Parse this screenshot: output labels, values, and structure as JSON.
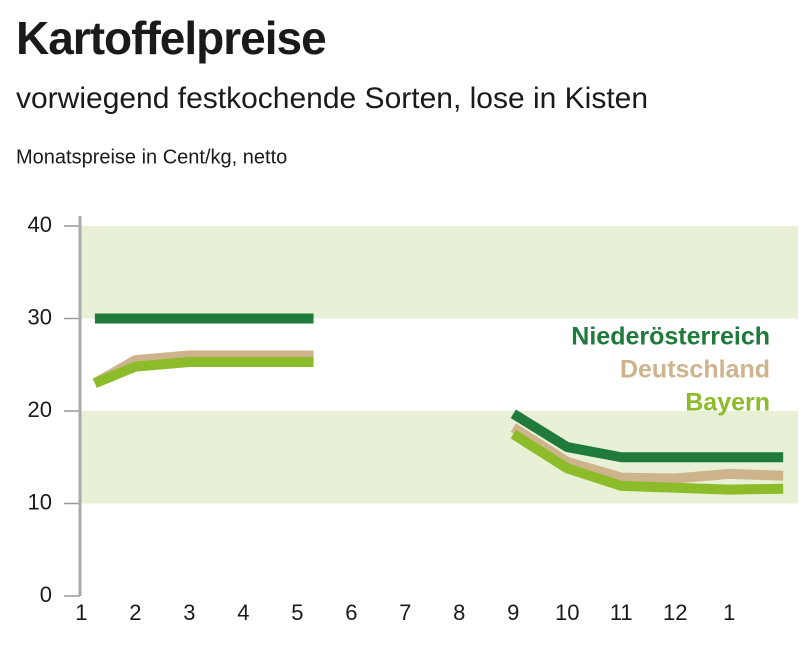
{
  "chart_data": {
    "type": "line",
    "title": "Kartoffelpreise",
    "subtitle": "vorwiegend festkochende Sorten, lose in Kisten",
    "note": "Monatspreise in Cent/kg, netto",
    "x": [
      1.25,
      2,
      3,
      4,
      5.3,
      7,
      9,
      10,
      11,
      12,
      13,
      14
    ],
    "series": [
      {
        "name": "Niederösterreich",
        "color": "#1f7a3c",
        "values": [
          30,
          30,
          30,
          30,
          30,
          null,
          19.7,
          16.1,
          15,
          15,
          15,
          15
        ]
      },
      {
        "name": "Deutschland",
        "color": "#cdb48c",
        "values": [
          23,
          25.5,
          26,
          26,
          26,
          null,
          18.2,
          14.5,
          12.8,
          12.7,
          13.2,
          13
        ]
      },
      {
        "name": "Bayern",
        "color": "#8cbc2a",
        "values": [
          23,
          24.8,
          25.3,
          25.3,
          25.3,
          null,
          17.5,
          13.8,
          11.9,
          11.7,
          11.5,
          11.6
        ]
      }
    ],
    "xlim": [
      0.9,
      14.2
    ],
    "xticks": [
      1,
      2,
      3,
      4,
      5,
      6,
      7,
      8,
      9,
      10,
      11,
      12,
      {
        "value": 13,
        "label": "1"
      }
    ],
    "ylim": [
      0,
      40
    ],
    "yticks": [
      0,
      10,
      20,
      30,
      40
    ],
    "grid": "alternating-bands",
    "band_color": "#e8f1d6",
    "legend": "right"
  }
}
